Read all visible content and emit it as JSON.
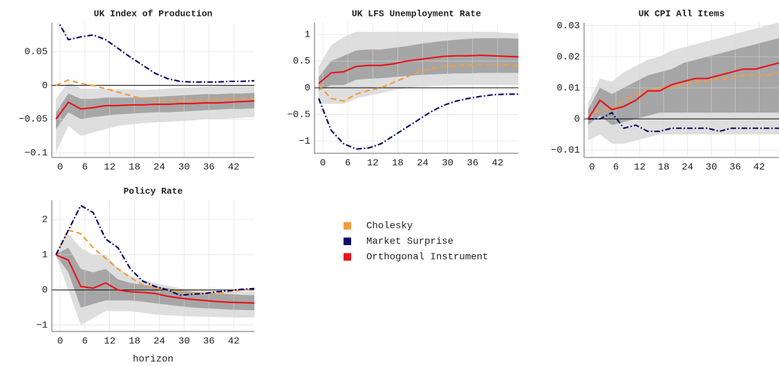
{
  "chart_data": [
    {
      "type": "line",
      "title": "UK Index of Production",
      "grid": true,
      "x": [
        -1,
        2,
        5,
        8,
        11,
        14,
        17,
        20,
        23,
        26,
        29,
        32,
        35,
        38,
        41,
        44,
        47
      ],
      "xlim": [
        -2,
        47
      ],
      "xticks": [
        0,
        6,
        12,
        18,
        24,
        30,
        36,
        42
      ],
      "ylim": [
        -0.107,
        0.093
      ],
      "yticks": [
        {
          "value": -0.1,
          "label": "−0.1"
        },
        {
          "value": -0.05,
          "label": "−0.05"
        },
        0,
        0.05
      ],
      "bands": [
        {
          "color": "#dedede",
          "lower": [
            -0.1,
            -0.06,
            -0.075,
            -0.07,
            -0.065,
            -0.06,
            -0.058,
            -0.056,
            -0.055,
            -0.054,
            -0.053,
            -0.052,
            -0.05,
            -0.05,
            -0.049,
            -0.048,
            -0.047
          ],
          "upper": [
            -0.02,
            0.005,
            -0.005,
            -0.005,
            -0.005,
            -0.006,
            -0.006,
            -0.007,
            -0.006,
            -0.005,
            -0.004,
            -0.003,
            -0.002,
            -0.001,
            0,
            0,
            0
          ]
        },
        {
          "color": "#a6a6a6",
          "lower": [
            -0.065,
            -0.04,
            -0.05,
            -0.047,
            -0.045,
            -0.043,
            -0.042,
            -0.041,
            -0.04,
            -0.04,
            -0.039,
            -0.038,
            -0.037,
            -0.036,
            -0.035,
            -0.035,
            -0.034
          ],
          "upper": [
            -0.04,
            -0.012,
            -0.02,
            -0.02,
            -0.018,
            -0.018,
            -0.018,
            -0.018,
            -0.017,
            -0.016,
            -0.015,
            -0.014,
            -0.013,
            -0.013,
            -0.012,
            -0.012,
            -0.011
          ]
        }
      ],
      "series": [
        {
          "name": "Cholesky",
          "color": "#f39c3c",
          "dash": "dashed",
          "values": [
            0,
            0.008,
            0.003,
            0.0,
            -0.005,
            -0.01,
            -0.015,
            -0.02,
            -0.022,
            -0.022,
            -0.022,
            -0.022,
            -0.022,
            -0.021,
            -0.02,
            -0.02,
            -0.019
          ]
        },
        {
          "name": "Market Surprise",
          "color": "#0b0b6b",
          "dash": "dashdot",
          "values": [
            0.1,
            0.068,
            0.072,
            0.075,
            0.068,
            0.055,
            0.042,
            0.03,
            0.018,
            0.01,
            0.006,
            0.005,
            0.005,
            0.005,
            0.006,
            0.006,
            0.007
          ]
        },
        {
          "name": "Orthogonal Instrument",
          "color": "#e8141c",
          "dash": "solid",
          "values": [
            -0.05,
            -0.025,
            -0.035,
            -0.033,
            -0.03,
            -0.03,
            -0.029,
            -0.029,
            -0.028,
            -0.028,
            -0.027,
            -0.027,
            -0.026,
            -0.026,
            -0.025,
            -0.024,
            -0.023
          ]
        }
      ]
    },
    {
      "type": "line",
      "title": "UK LFS Unemployment Rate",
      "grid": true,
      "x": [
        -1,
        2,
        5,
        8,
        11,
        14,
        17,
        20,
        23,
        26,
        29,
        32,
        35,
        38,
        41,
        44,
        47
      ],
      "xlim": [
        -2,
        47
      ],
      "xticks": [
        0,
        6,
        12,
        18,
        24,
        30,
        36,
        42
      ],
      "ylim": [
        -1.23,
        1.22
      ],
      "yticks": [
        {
          "value": -1,
          "label": "−1"
        },
        {
          "value": -0.5,
          "label": "−0.5"
        },
        0,
        0.5,
        1
      ],
      "bands": [
        {
          "color": "#dedede",
          "lower": [
            -0.3,
            -0.3,
            -0.3,
            -0.2,
            -0.15,
            -0.1,
            -0.05,
            0,
            0.02,
            0.03,
            0.04,
            0.05,
            0.05,
            0.05,
            0.05,
            0.05,
            0.05
          ],
          "upper": [
            0.4,
            0.8,
            0.95,
            1.05,
            1.05,
            1.05,
            1.05,
            1.05,
            1.05,
            1.05,
            1.05,
            1.05,
            1.05,
            1.05,
            1.05,
            1.03,
            1.02
          ]
        },
        {
          "color": "#a6a6a6",
          "lower": [
            -0.05,
            0.05,
            0.05,
            0.15,
            0.17,
            0.18,
            0.2,
            0.22,
            0.24,
            0.25,
            0.26,
            0.27,
            0.27,
            0.28,
            0.28,
            0.28,
            0.28
          ],
          "upper": [
            0.2,
            0.5,
            0.6,
            0.7,
            0.72,
            0.72,
            0.75,
            0.78,
            0.82,
            0.85,
            0.88,
            0.9,
            0.92,
            0.93,
            0.93,
            0.93,
            0.92
          ]
        }
      ],
      "series": [
        {
          "name": "Cholesky",
          "color": "#f39c3c",
          "dash": "dashed",
          "values": [
            0.05,
            -0.2,
            -0.25,
            -0.12,
            -0.05,
            0.0,
            0.1,
            0.2,
            0.3,
            0.35,
            0.4,
            0.42,
            0.43,
            0.44,
            0.44,
            0.43,
            0.42
          ]
        },
        {
          "name": "Market Surprise",
          "color": "#0b0b6b",
          "dash": "dashdot",
          "values": [
            -0.2,
            -0.8,
            -1.05,
            -1.15,
            -1.13,
            -1.05,
            -0.9,
            -0.75,
            -0.6,
            -0.45,
            -0.33,
            -0.25,
            -0.2,
            -0.16,
            -0.13,
            -0.12,
            -0.12
          ]
        },
        {
          "name": "Orthogonal Instrument",
          "color": "#e8141c",
          "dash": "solid",
          "values": [
            0.08,
            0.28,
            0.3,
            0.4,
            0.42,
            0.42,
            0.45,
            0.5,
            0.53,
            0.56,
            0.59,
            0.6,
            0.6,
            0.61,
            0.6,
            0.59,
            0.58
          ]
        }
      ]
    },
    {
      "type": "line",
      "title": "UK CPI All Items",
      "grid": true,
      "x": [
        -1,
        2,
        5,
        8,
        11,
        14,
        17,
        20,
        23,
        26,
        29,
        32,
        35,
        38,
        41,
        44,
        47
      ],
      "xlim": [
        -2,
        47
      ],
      "xticks": [
        0,
        6,
        12,
        18,
        24,
        30,
        36,
        42
      ],
      "ylim": [
        -0.0124,
        0.0309
      ],
      "yticks": [
        {
          "value": -0.01,
          "label": "−0.01"
        },
        0,
        0.01,
        0.02,
        0.03
      ],
      "bands": [
        {
          "color": "#dedede",
          "lower": [
            -0.007,
            -0.005,
            -0.008,
            -0.008,
            -0.007,
            -0.006,
            -0.005,
            -0.005,
            -0.005,
            -0.005,
            -0.005,
            -0.005,
            -0.005,
            -0.005,
            -0.005,
            -0.005,
            -0.005
          ],
          "upper": [
            0.005,
            0.013,
            0.012,
            0.015,
            0.017,
            0.019,
            0.02,
            0.022,
            0.023,
            0.024,
            0.025,
            0.026,
            0.027,
            0.028,
            0.029,
            0.03,
            0.031
          ]
        },
        {
          "color": "#a6a6a6",
          "lower": [
            -0.002,
            0.001,
            -0.002,
            -0.001,
            0,
            0.001,
            0.002,
            0.002,
            0.002,
            0.002,
            0.002,
            0.002,
            0.002,
            0.002,
            0.002,
            0.002,
            0.002
          ],
          "upper": [
            0.003,
            0.01,
            0.008,
            0.01,
            0.012,
            0.014,
            0.015,
            0.016,
            0.018,
            0.019,
            0.02,
            0.021,
            0.022,
            0.023,
            0.024,
            0.025,
            0.026
          ]
        }
      ],
      "series": [
        {
          "name": "Cholesky",
          "color": "#f39c3c",
          "dash": "dashed",
          "values": [
            0,
            0.003,
            0.003,
            0.006,
            0.008,
            0.009,
            0.01,
            0.01,
            0.011,
            0.012,
            0.012,
            0.013,
            0.013,
            0.014,
            0.014,
            0.014,
            0.015
          ]
        },
        {
          "name": "Market Surprise",
          "color": "#0b0b6b",
          "dash": "dashdot",
          "values": [
            0,
            0,
            0.002,
            -0.003,
            -0.002,
            -0.004,
            -0.004,
            -0.003,
            -0.003,
            -0.003,
            -0.003,
            -0.004,
            -0.003,
            -0.003,
            -0.003,
            -0.003,
            -0.003
          ]
        },
        {
          "name": "Orthogonal Instrument",
          "color": "#e8141c",
          "dash": "solid",
          "values": [
            0,
            0.006,
            0.003,
            0.004,
            0.006,
            0.009,
            0.009,
            0.011,
            0.012,
            0.013,
            0.013,
            0.014,
            0.015,
            0.016,
            0.016,
            0.017,
            0.018
          ]
        }
      ]
    },
    {
      "type": "line",
      "title": "Policy Rate",
      "xlabel": "horizon",
      "grid": true,
      "x": [
        -1,
        2,
        5,
        8,
        11,
        14,
        17,
        20,
        23,
        26,
        29,
        32,
        35,
        38,
        41,
        44,
        47
      ],
      "xlim": [
        -2,
        47
      ],
      "xticks": [
        0,
        6,
        12,
        18,
        24,
        30,
        36,
        42
      ],
      "ylim": [
        -1.18,
        2.55
      ],
      "yticks": [
        {
          "value": -1,
          "label": "−1"
        },
        0,
        1,
        2
      ],
      "bands": [
        {
          "color": "#dedede",
          "lower": [
            0.95,
            0,
            -1.0,
            -0.8,
            -0.6,
            -0.6,
            -0.6,
            -0.65,
            -0.7,
            -0.72,
            -0.74,
            -0.75,
            -0.76,
            -0.77,
            -0.78,
            -0.78,
            -0.78
          ],
          "upper": [
            1.05,
            1.6,
            1.2,
            1.0,
            1.0,
            0.6,
            0.4,
            0.3,
            0.2,
            0.12,
            0.05,
            0.02,
            0,
            -0.02,
            -0.03,
            -0.04,
            -0.04
          ]
        },
        {
          "color": "#a6a6a6",
          "lower": [
            0.98,
            0.5,
            -0.5,
            -0.4,
            -0.3,
            -0.3,
            -0.3,
            -0.33,
            -0.38,
            -0.42,
            -0.46,
            -0.5,
            -0.52,
            -0.54,
            -0.56,
            -0.57,
            -0.58
          ],
          "upper": [
            1.02,
            1.2,
            0.6,
            0.5,
            0.6,
            0.3,
            0.2,
            0.15,
            0.1,
            0.05,
            0,
            -0.05,
            -0.08,
            -0.1,
            -0.12,
            -0.14,
            -0.15
          ]
        }
      ],
      "series": [
        {
          "name": "Cholesky",
          "color": "#f39c3c",
          "dash": "dashed",
          "values": [
            1,
            1.7,
            1.6,
            1.2,
            0.9,
            0.6,
            0.35,
            0.15,
            0.05,
            0,
            -0.05,
            -0.1,
            -0.1,
            -0.1,
            -0.05,
            0,
            0.03
          ]
        },
        {
          "name": "Market Surprise",
          "color": "#0b0b6b",
          "dash": "dashdot",
          "values": [
            1,
            1.7,
            2.4,
            2.2,
            1.45,
            1.2,
            0.6,
            0.25,
            0.1,
            0.0,
            -0.15,
            -0.12,
            -0.1,
            -0.05,
            -0.02,
            0.02,
            0.04
          ]
        },
        {
          "name": "Orthogonal Instrument",
          "color": "#e8141c",
          "dash": "solid",
          "values": [
            1,
            0.85,
            0.1,
            0.05,
            0.2,
            0.0,
            -0.05,
            -0.07,
            -0.1,
            -0.18,
            -0.23,
            -0.27,
            -0.3,
            -0.33,
            -0.35,
            -0.36,
            -0.37
          ]
        }
      ]
    }
  ]
}
